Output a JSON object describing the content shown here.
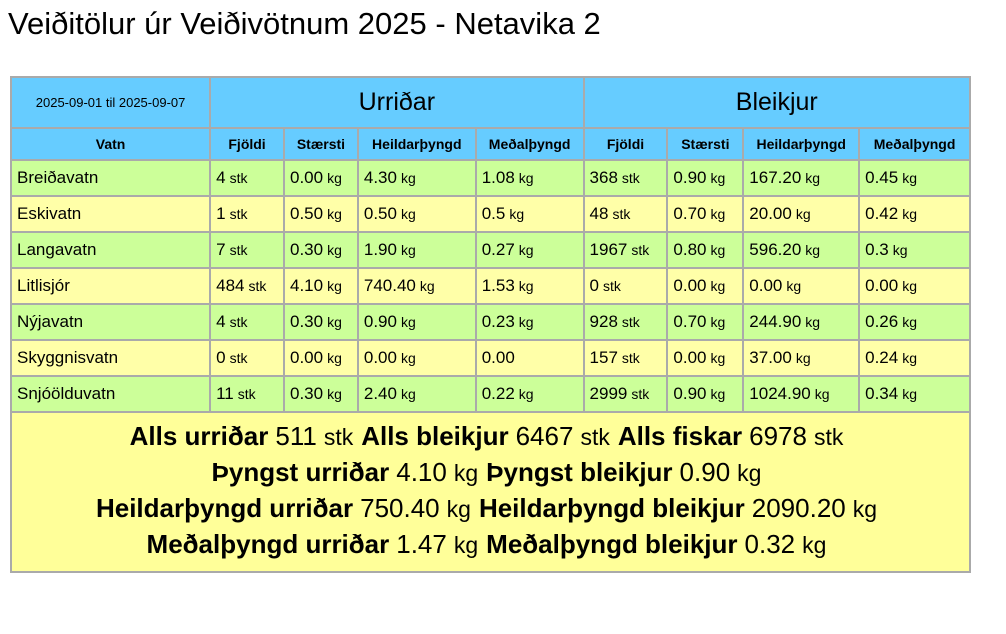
{
  "header": {
    "title": "Veiðitölur úr Veiðivötnum 2025 - Netavika 2"
  },
  "table": {
    "period": "2025-09-01 til 2025-09-07",
    "groups": [
      "Urriðar",
      "Bleikjur"
    ],
    "columns": [
      "Vatn",
      "Fjöldi",
      "Stærsti",
      "Heildarþyngd",
      "Meðalþyngd",
      "Fjöldi",
      "Stærsti",
      "Heildarþyngd",
      "Meðalþyngd"
    ],
    "rows": [
      {
        "vatn": "Breiðavatn",
        "cells": [
          [
            "4",
            "stk"
          ],
          [
            "0.00",
            "kg"
          ],
          [
            "4.30",
            "kg"
          ],
          [
            "1.08",
            "kg"
          ],
          [
            "368",
            "stk"
          ],
          [
            "0.90",
            "kg"
          ],
          [
            "167.20",
            "kg"
          ],
          [
            "0.45",
            "kg"
          ]
        ]
      },
      {
        "vatn": "Eskivatn",
        "cells": [
          [
            "1",
            "stk"
          ],
          [
            "0.50",
            "kg"
          ],
          [
            "0.50",
            "kg"
          ],
          [
            "0.5",
            "kg"
          ],
          [
            "48",
            "stk"
          ],
          [
            "0.70",
            "kg"
          ],
          [
            "20.00",
            "kg"
          ],
          [
            "0.42",
            "kg"
          ]
        ]
      },
      {
        "vatn": "Langavatn",
        "cells": [
          [
            "7",
            "stk"
          ],
          [
            "0.30",
            "kg"
          ],
          [
            "1.90",
            "kg"
          ],
          [
            "0.27",
            "kg"
          ],
          [
            "1967",
            "stk"
          ],
          [
            "0.80",
            "kg"
          ],
          [
            "596.20",
            "kg"
          ],
          [
            "0.3",
            "kg"
          ]
        ]
      },
      {
        "vatn": "Litlisjór",
        "cells": [
          [
            "484",
            "stk"
          ],
          [
            "4.10",
            "kg"
          ],
          [
            "740.40",
            "kg"
          ],
          [
            "1.53",
            "kg"
          ],
          [
            "0",
            "stk"
          ],
          [
            "0.00",
            "kg"
          ],
          [
            "0.00",
            "kg"
          ],
          [
            "0.00",
            "kg"
          ]
        ]
      },
      {
        "vatn": "Nýjavatn",
        "cells": [
          [
            "4",
            "stk"
          ],
          [
            "0.30",
            "kg"
          ],
          [
            "0.90",
            "kg"
          ],
          [
            "0.23",
            "kg"
          ],
          [
            "928",
            "stk"
          ],
          [
            "0.70",
            "kg"
          ],
          [
            "244.90",
            "kg"
          ],
          [
            "0.26",
            "kg"
          ]
        ]
      },
      {
        "vatn": "Skyggnisvatn",
        "cells": [
          [
            "0",
            "stk"
          ],
          [
            "0.00",
            "kg"
          ],
          [
            "0.00",
            "kg"
          ],
          [
            "0.00"
          ],
          [
            "157",
            "stk"
          ],
          [
            "0.00",
            "kg"
          ],
          [
            "37.00",
            "kg"
          ],
          [
            "0.24",
            "kg"
          ]
        ]
      },
      {
        "vatn": "Snjóölduvatn",
        "cells": [
          [
            "11",
            "stk"
          ],
          [
            "0.30",
            "kg"
          ],
          [
            "2.40",
            "kg"
          ],
          [
            "0.22",
            "kg"
          ],
          [
            "2999",
            "stk"
          ],
          [
            "0.90",
            "kg"
          ],
          [
            "1024.90",
            "kg"
          ],
          [
            "0.34",
            "kg"
          ]
        ]
      }
    ],
    "summary": [
      [
        {
          "label": "Alls urriðar",
          "value": "511",
          "unit": "stk"
        },
        {
          "label": "Alls bleikjur",
          "value": "6467",
          "unit": "stk"
        },
        {
          "label": "Alls fiskar",
          "value": "6978",
          "unit": "stk"
        }
      ],
      [
        {
          "label": "Þyngst urriðar",
          "value": "4.10",
          "unit": "kg"
        },
        {
          "label": "Þyngst bleikjur",
          "value": "0.90",
          "unit": "kg"
        }
      ],
      [
        {
          "label": "Heildarþyngd urriðar",
          "value": "750.40",
          "unit": "kg"
        },
        {
          "label": "Heildarþyngd bleikjur",
          "value": "2090.20",
          "unit": "kg"
        }
      ],
      [
        {
          "label": "Meðalþyngd urriðar",
          "value": "1.47",
          "unit": "kg"
        },
        {
          "label": "Meðalþyngd bleikjur",
          "value": "0.32",
          "unit": "kg"
        }
      ]
    ]
  }
}
